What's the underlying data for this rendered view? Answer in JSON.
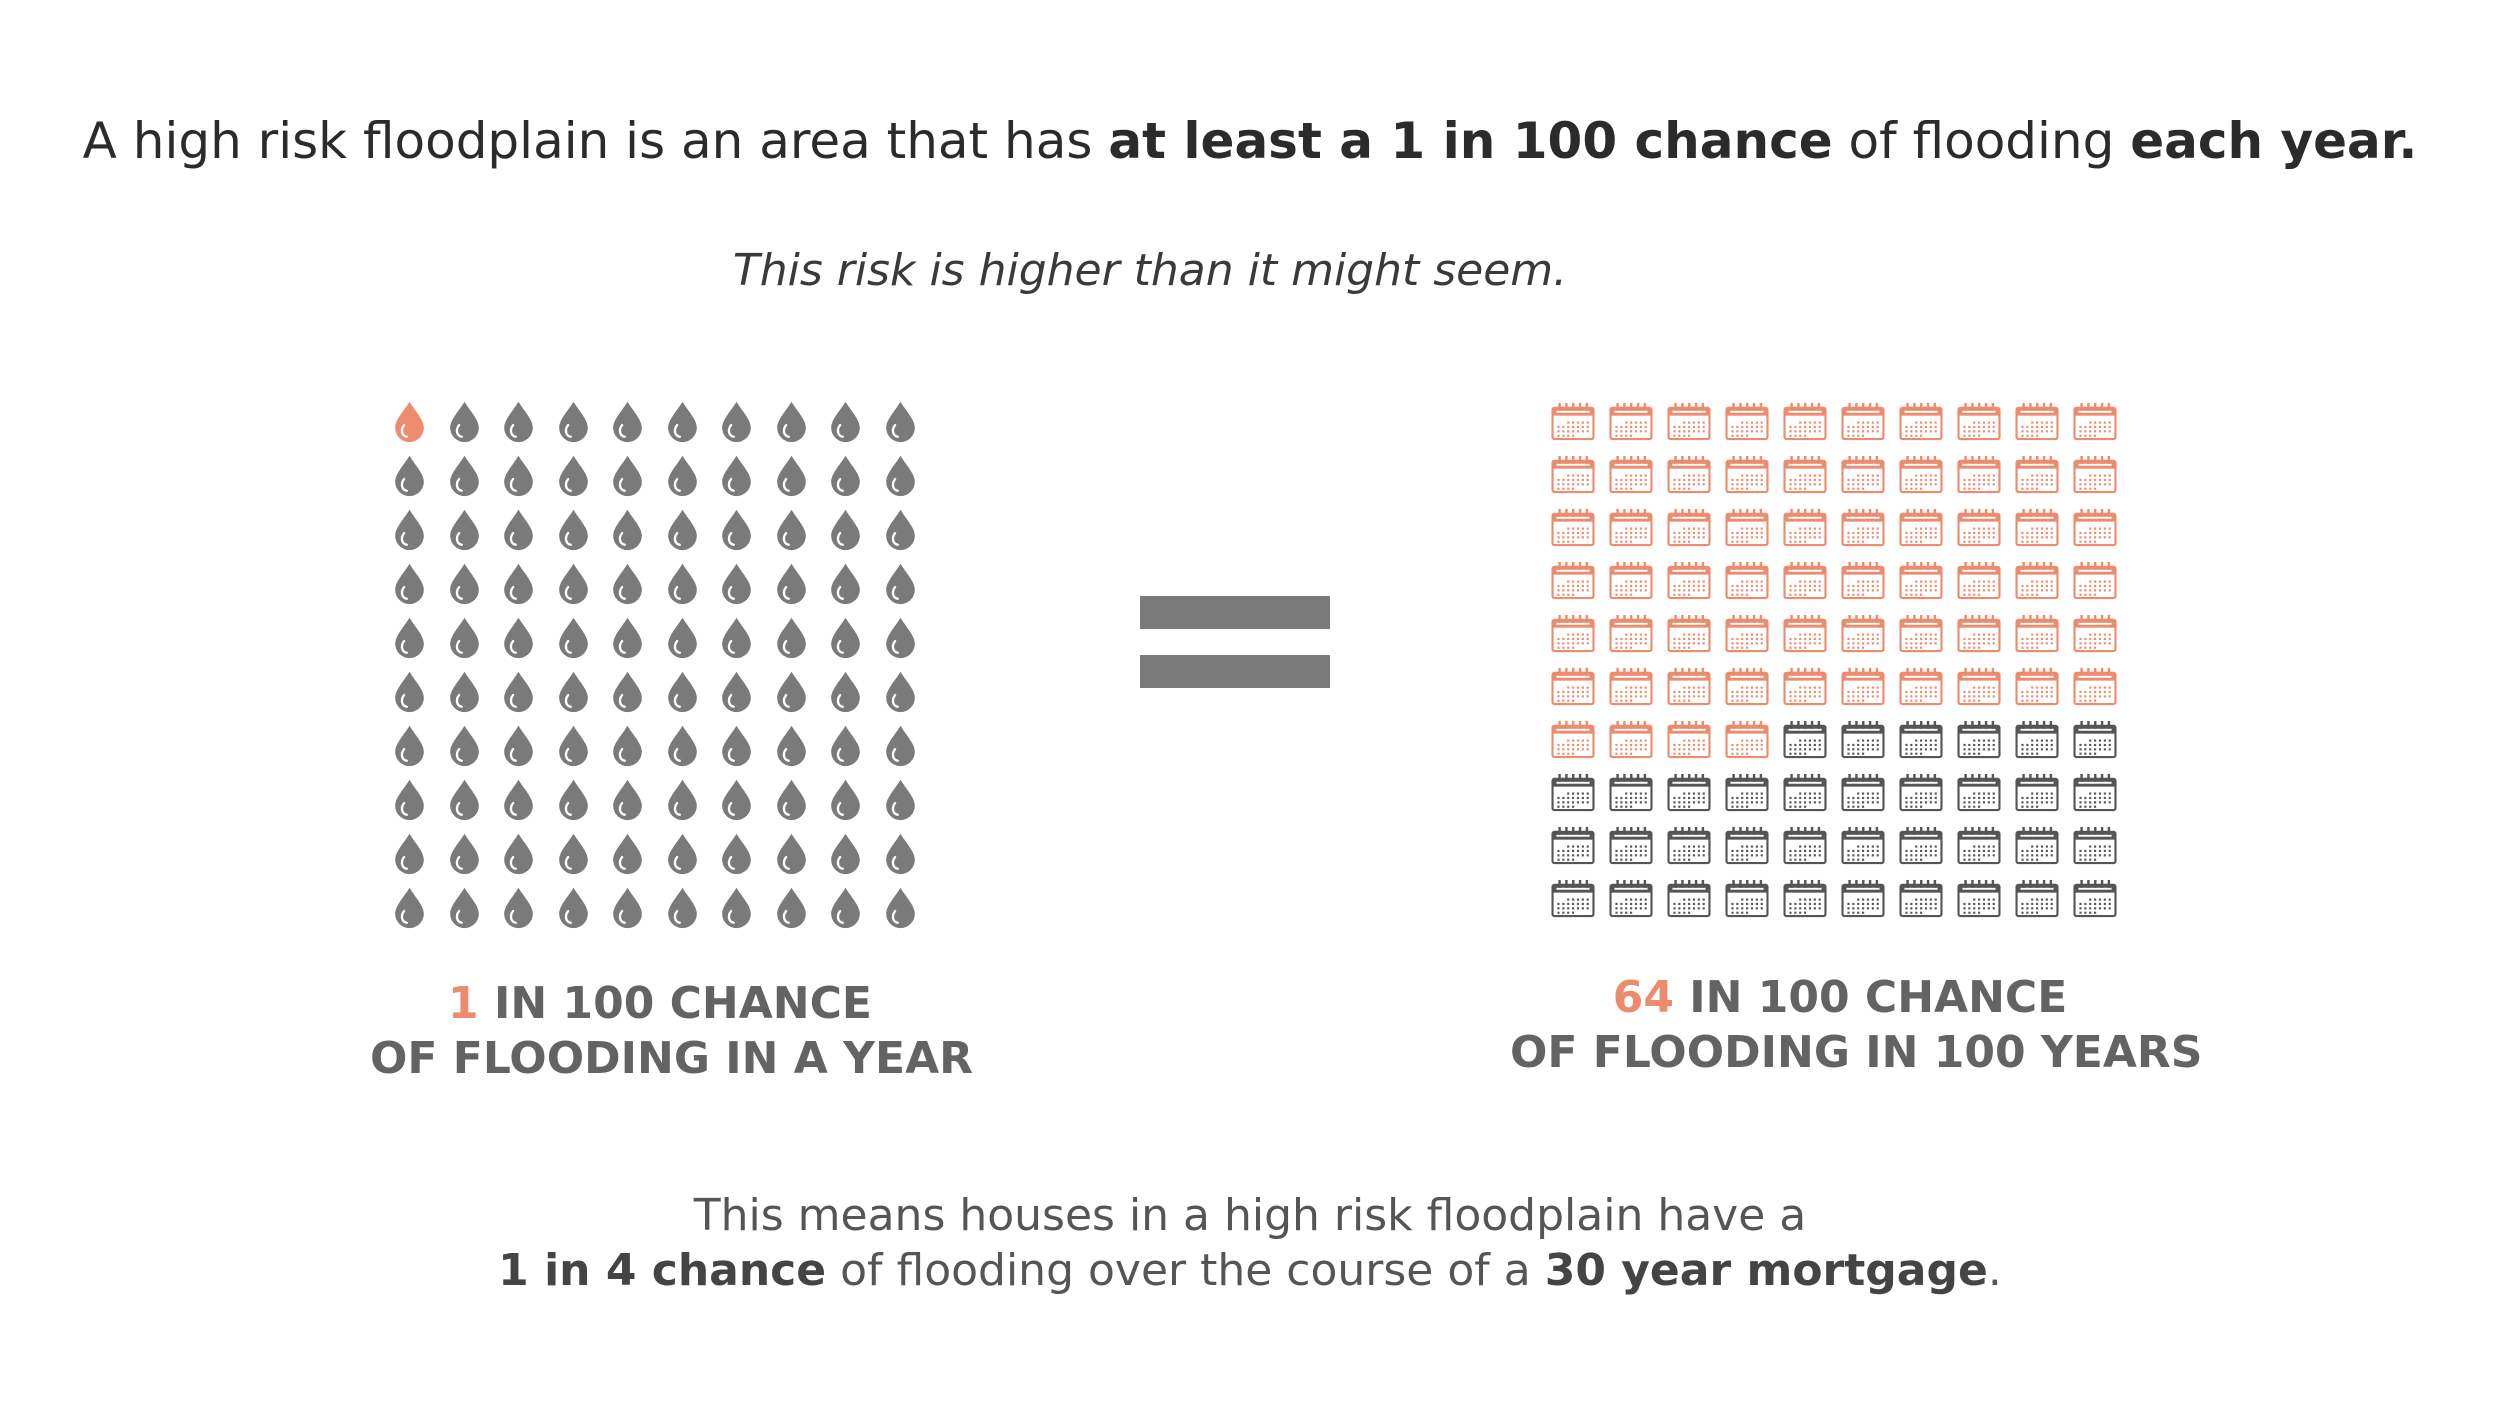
{
  "headline": {
    "part1": "A high risk floodplain is an area that has ",
    "bold1": "at least a 1 in 100 chance",
    "part2": " of flooding ",
    "bold2": "each year."
  },
  "subhead": "This risk is higher than it might seem.",
  "left_graphic": {
    "icon": "water-drop-icon",
    "total": 100,
    "highlighted": 1,
    "caption_number": "1",
    "caption_rest_line1": " IN 100 CHANCE",
    "caption_line2": "OF FLOODING IN A YEAR"
  },
  "equals_icon": "equals-icon",
  "right_graphic": {
    "icon": "calendar-icon",
    "total": 100,
    "highlighted": 64,
    "caption_number": "64",
    "caption_rest_line1": " IN 100 CHANCE",
    "caption_line2": "OF FLOODING IN 100 YEARS"
  },
  "footer": {
    "line1": "This means houses in a high risk floodplain have a",
    "bold1": "1 in 4 chance",
    "mid": " of flooding over the course of a ",
    "bold2": "30 year mortgage",
    "end": "."
  },
  "colors": {
    "highlight": "#ec8b6d",
    "neutral_icon": "#7a7a7a",
    "calendar_dark": "#555555",
    "text_dark": "#2b2b2b",
    "caption_gray": "#636363"
  }
}
